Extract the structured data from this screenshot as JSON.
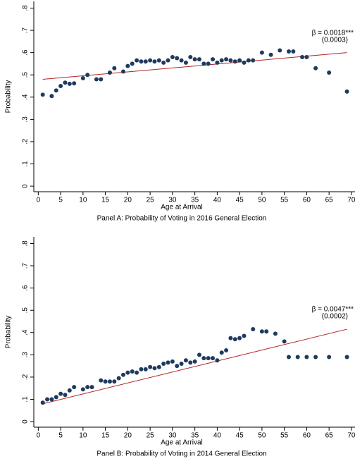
{
  "chart_data": [
    {
      "type": "scatter",
      "title": "Panel A: Probability of Voting in 2016 General Election",
      "xlabel": "Age at Arrival",
      "ylabel": "Probability",
      "x": [
        1,
        3,
        4,
        5,
        6,
        7,
        8,
        10,
        11,
        13,
        14,
        16,
        17,
        19,
        20,
        21,
        22,
        23,
        24,
        25,
        26,
        27,
        28,
        29,
        30,
        31,
        32,
        33,
        34,
        35,
        36,
        37,
        38,
        39,
        40,
        41,
        42,
        43,
        44,
        45,
        46,
        47,
        48,
        50,
        52,
        54,
        56,
        57,
        59,
        60,
        62,
        65,
        69
      ],
      "values": [
        0.411,
        0.405,
        0.43,
        0.45,
        0.465,
        0.46,
        0.462,
        0.485,
        0.5,
        0.48,
        0.48,
        0.51,
        0.53,
        0.515,
        0.54,
        0.55,
        0.565,
        0.56,
        0.56,
        0.565,
        0.56,
        0.565,
        0.555,
        0.565,
        0.58,
        0.575,
        0.565,
        0.555,
        0.58,
        0.57,
        0.57,
        0.55,
        0.55,
        0.57,
        0.555,
        0.565,
        0.57,
        0.565,
        0.56,
        0.565,
        0.555,
        0.565,
        0.565,
        0.6,
        0.59,
        0.61,
        0.605,
        0.605,
        0.58,
        0.58,
        0.53,
        0.51,
        0.425
      ],
      "color": "#1f3a5f",
      "fit": {
        "x": [
          1,
          69
        ],
        "values": [
          0.48,
          0.6
        ],
        "color": "#b22222"
      },
      "annotation": [
        "β = 0.0018***",
        "(0.0003)"
      ],
      "annotation_color": "#2e8b22",
      "xlim": [
        -1,
        70.8
      ],
      "ylim": [
        -0.025,
        0.83
      ],
      "xticks": [
        0,
        5,
        10,
        15,
        20,
        25,
        30,
        35,
        40,
        45,
        50,
        55,
        60,
        65,
        70
      ],
      "yticks": [
        0,
        {
          "value": 0.1,
          "label": ".1"
        },
        {
          "value": 0.2,
          "label": ".2"
        },
        {
          "value": 0.3,
          "label": ".3"
        },
        {
          "value": 0.4,
          "label": ".4"
        },
        {
          "value": 0.5,
          "label": ".5"
        },
        {
          "value": 0.6,
          "label": ".6"
        },
        {
          "value": 0.7,
          "label": ".7"
        },
        {
          "value": 0.8,
          "label": ".8"
        }
      ]
    },
    {
      "type": "scatter",
      "title": "Panel B: Probability of Voting in 2014 General Election",
      "xlabel": "Age at Arrival",
      "ylabel": "Probability",
      "x": [
        1,
        2,
        3,
        4,
        5,
        6,
        7,
        8,
        10,
        11,
        12,
        14,
        15,
        16,
        17,
        18,
        19,
        20,
        21,
        22,
        23,
        24,
        25,
        26,
        27,
        28,
        29,
        30,
        31,
        32,
        33,
        34,
        35,
        36,
        37,
        38,
        39,
        40,
        41,
        42,
        43,
        44,
        45,
        46,
        48,
        50,
        51,
        53,
        55,
        56,
        58,
        60,
        62,
        65,
        69
      ],
      "values": [
        0.085,
        0.1,
        0.1,
        0.11,
        0.125,
        0.12,
        0.14,
        0.155,
        0.145,
        0.155,
        0.155,
        0.185,
        0.18,
        0.18,
        0.18,
        0.195,
        0.21,
        0.22,
        0.225,
        0.22,
        0.235,
        0.235,
        0.245,
        0.24,
        0.245,
        0.26,
        0.265,
        0.27,
        0.25,
        0.26,
        0.275,
        0.265,
        0.27,
        0.3,
        0.285,
        0.285,
        0.285,
        0.275,
        0.31,
        0.32,
        0.375,
        0.37,
        0.375,
        0.385,
        0.415,
        0.405,
        0.405,
        0.395,
        0.36,
        0.29,
        0.29,
        0.29,
        0.29,
        0.29,
        0.29
      ],
      "color": "#1f3a5f",
      "fit": {
        "x": [
          1,
          69
        ],
        "values": [
          0.08,
          0.415
        ],
        "color": "#b22222"
      },
      "annotation": [
        "β = 0.0047***",
        "(0.0002)"
      ],
      "annotation_color": "#2e8b22",
      "xlim": [
        -1,
        70.8
      ],
      "ylim": [
        -0.025,
        0.83
      ],
      "xticks": [
        0,
        5,
        10,
        15,
        20,
        25,
        30,
        35,
        40,
        45,
        50,
        55,
        60,
        65,
        70
      ],
      "yticks": [
        0,
        {
          "value": 0.1,
          "label": ".1"
        },
        {
          "value": 0.2,
          "label": ".2"
        },
        {
          "value": 0.3,
          "label": ".3"
        },
        {
          "value": 0.4,
          "label": ".4"
        },
        {
          "value": 0.5,
          "label": ".5"
        },
        {
          "value": 0.6,
          "label": ".6"
        },
        {
          "value": 0.7,
          "label": ".7"
        },
        {
          "value": 0.8,
          "label": ".8"
        }
      ]
    }
  ]
}
